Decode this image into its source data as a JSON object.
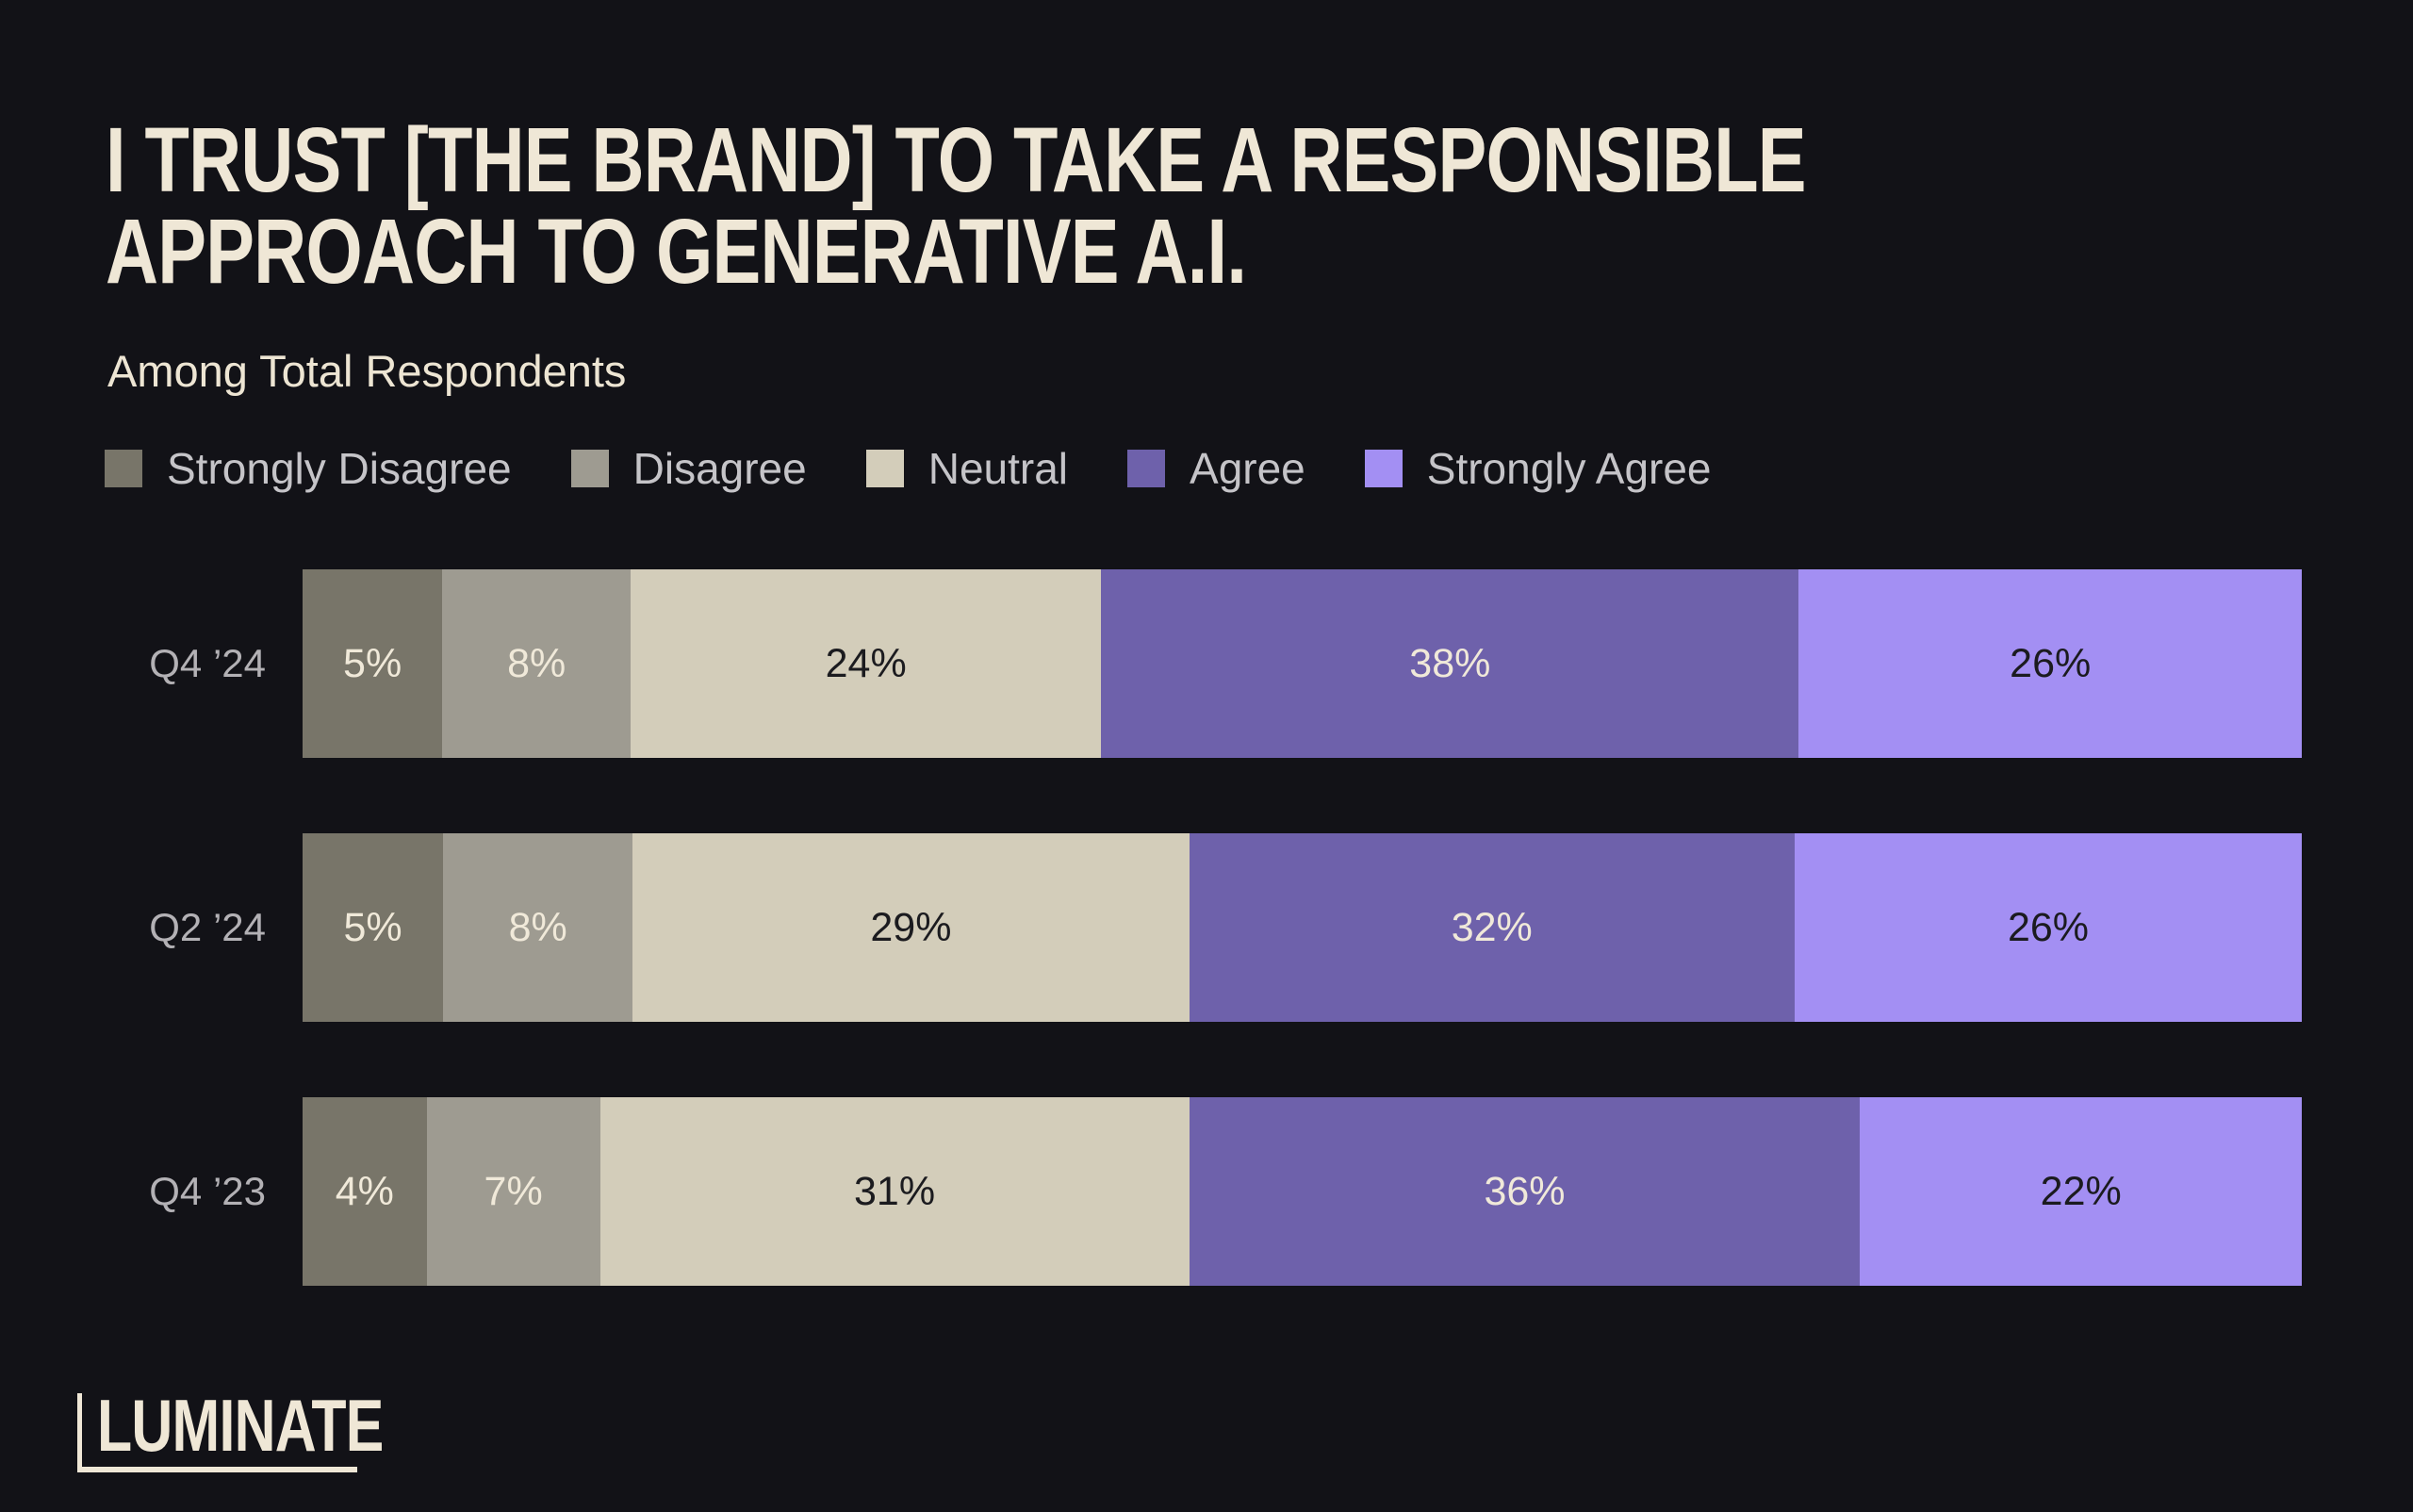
{
  "page": {
    "background": "#121217",
    "title_color": "#EFE7D6",
    "subtitle_color": "#EDE5D3",
    "legend_text_color": "#C5C4C8",
    "row_label_color": "#B3B1B5"
  },
  "title": {
    "line1": "I TRUST [THE BRAND] TO TAKE A RESPONSIBLE",
    "line2": "APPROACH TO GENERATIVE A.I."
  },
  "subtitle": "Among Total Respondents",
  "logo": {
    "text": "LUMINATE",
    "color": "#EFE7D6"
  },
  "chart_data": {
    "type": "bar",
    "orientation": "horizontal",
    "stacked": true,
    "unit": "%",
    "title": "I TRUST [THE BRAND] TO TAKE A RESPONSIBLE APPROACH TO GENERATIVE A.I.",
    "subtitle": "Among Total Respondents",
    "legend_position": "top",
    "value_labels": "inside",
    "xlim": [
      0,
      100
    ],
    "categories": [
      "Q4 ’24",
      "Q2 ’24",
      "Q4 ’23"
    ],
    "series": [
      {
        "name": "Strongly Disagree",
        "color": "#787569",
        "label_color": "#F0E9D9",
        "values": [
          5,
          5,
          4
        ]
      },
      {
        "name": "Disagree",
        "color": "#9E9B91",
        "label_color": "#F0E9D9",
        "values": [
          8,
          8,
          7
        ]
      },
      {
        "name": "Neutral",
        "color": "#D3CDBA",
        "label_color": "#1B1B1F",
        "values": [
          24,
          29,
          31
        ]
      },
      {
        "name": "Agree",
        "color": "#6E61AB",
        "label_color": "#F0E9D9",
        "values": [
          38,
          32,
          36
        ]
      },
      {
        "name": "Strongly Agree",
        "color": "#A38FF3",
        "label_color": "#1B1B1F",
        "values": [
          26,
          26,
          22
        ]
      }
    ]
  }
}
